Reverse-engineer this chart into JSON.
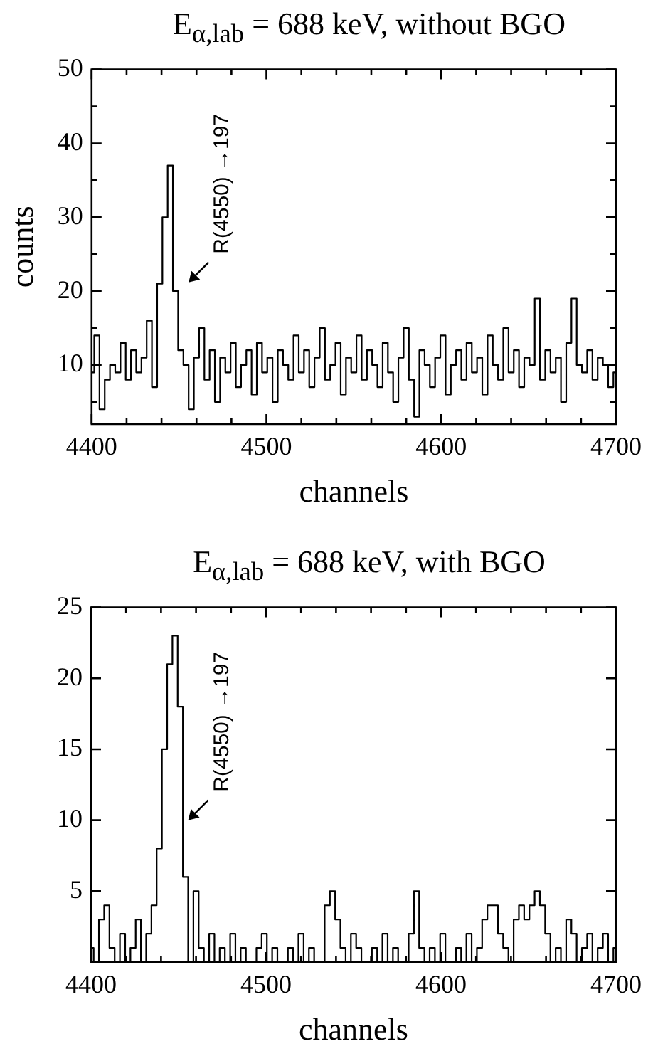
{
  "chart_data": [
    {
      "type": "step",
      "title": "E$_{α,lab}$ = 688 keV, without BGO",
      "xlabel": "channels",
      "ylabel": "counts",
      "x": [
        4400,
        4403,
        4406,
        4409,
        4412,
        4415,
        4418,
        4421,
        4424,
        4427,
        4430,
        4433,
        4436,
        4439,
        4442,
        4445,
        4448,
        4451,
        4454,
        4457,
        4460,
        4463,
        4466,
        4469,
        4472,
        4475,
        4478,
        4481,
        4484,
        4487,
        4490,
        4493,
        4496,
        4499,
        4502,
        4505,
        4508,
        4511,
        4514,
        4517,
        4520,
        4523,
        4526,
        4529,
        4532,
        4535,
        4538,
        4541,
        4544,
        4547,
        4550,
        4553,
        4556,
        4559,
        4562,
        4565,
        4568,
        4571,
        4574,
        4577,
        4580,
        4583,
        4586,
        4589,
        4592,
        4595,
        4598,
        4601,
        4604,
        4607,
        4610,
        4613,
        4616,
        4619,
        4622,
        4625,
        4628,
        4631,
        4634,
        4637,
        4640,
        4643,
        4646,
        4649,
        4652,
        4655,
        4658,
        4661,
        4664,
        4667,
        4670,
        4673,
        4676,
        4679,
        4682,
        4685,
        4688,
        4691,
        4694,
        4697,
        4700
      ],
      "series": [
        {
          "color": "#000000",
          "values": [
            9,
            14,
            4,
            8,
            10,
            9,
            13,
            8,
            12,
            9,
            11,
            16,
            7,
            21,
            30,
            37,
            20,
            12,
            10,
            4,
            11,
            15,
            8,
            12,
            5,
            11,
            9,
            13,
            7,
            10,
            12,
            6,
            13,
            9,
            11,
            5,
            12,
            10,
            8,
            14,
            9,
            12,
            7,
            11,
            15,
            8,
            10,
            13,
            6,
            11,
            9,
            14,
            8,
            12,
            10,
            7,
            13,
            9,
            5,
            11,
            15,
            8,
            3,
            12,
            10,
            7,
            11,
            14,
            6,
            10,
            12,
            8,
            13,
            9,
            11,
            6,
            14,
            10,
            8,
            15,
            9,
            12,
            7,
            11,
            10,
            19,
            8,
            12,
            9,
            11,
            5,
            13,
            19,
            10,
            9,
            12,
            8,
            11,
            10,
            7,
            9
          ]
        }
      ],
      "xlim": [
        4400,
        4700
      ],
      "xticks": [
        4400,
        {
          "value": 4420,
          "label": null
        },
        {
          "value": 4440,
          "label": null
        },
        {
          "value": 4460,
          "label": null
        },
        {
          "value": 4480,
          "label": null
        },
        4500,
        {
          "value": 4520,
          "label": null
        },
        {
          "value": 4540,
          "label": null
        },
        {
          "value": 4560,
          "label": null
        },
        {
          "value": 4580,
          "label": null
        },
        4600,
        {
          "value": 4620,
          "label": null
        },
        {
          "value": 4640,
          "label": null
        },
        {
          "value": 4660,
          "label": null
        },
        {
          "value": 4680,
          "label": null
        },
        4700
      ],
      "ylim": [
        2,
        50
      ],
      "yticks": [
        {
          "value": 5,
          "label": null
        },
        10,
        {
          "value": 15,
          "label": null
        },
        20,
        {
          "value": 25,
          "label": null
        },
        30,
        {
          "value": 35,
          "label": null
        },
        40,
        {
          "value": 45,
          "label": null
        },
        50
      ],
      "annotations": [
        "R(4550) →197"
      ]
    },
    {
      "type": "step",
      "title": "E$_{α,lab}$ = 688 keV, with BGO",
      "xlabel": "channels",
      "x": [
        4400,
        4403,
        4406,
        4409,
        4412,
        4415,
        4418,
        4421,
        4424,
        4427,
        4430,
        4433,
        4436,
        4439,
        4442,
        4445,
        4448,
        4451,
        4454,
        4457,
        4460,
        4463,
        4466,
        4469,
        4472,
        4475,
        4478,
        4481,
        4484,
        4487,
        4490,
        4493,
        4496,
        4499,
        4502,
        4505,
        4508,
        4511,
        4514,
        4517,
        4520,
        4523,
        4526,
        4529,
        4532,
        4535,
        4538,
        4541,
        4544,
        4547,
        4550,
        4553,
        4556,
        4559,
        4562,
        4565,
        4568,
        4571,
        4574,
        4577,
        4580,
        4583,
        4586,
        4589,
        4592,
        4595,
        4598,
        4601,
        4604,
        4607,
        4610,
        4613,
        4616,
        4619,
        4622,
        4625,
        4628,
        4631,
        4634,
        4637,
        4640,
        4643,
        4646,
        4649,
        4652,
        4655,
        4658,
        4661,
        4664,
        4667,
        4670,
        4673,
        4676,
        4679,
        4682,
        4685,
        4688,
        4691,
        4694,
        4697,
        4700
      ],
      "series": [
        {
          "color": "#000000",
          "values": [
            1,
            0,
            3,
            4,
            1,
            0,
            2,
            0,
            1,
            3,
            0,
            2,
            4,
            8,
            15,
            21,
            23,
            18,
            6,
            0,
            5,
            1,
            0,
            2,
            0,
            1,
            0,
            2,
            0,
            1,
            0,
            0,
            1,
            2,
            0,
            1,
            0,
            0,
            1,
            0,
            2,
            0,
            1,
            0,
            0,
            4,
            5,
            3,
            1,
            0,
            2,
            1,
            0,
            0,
            1,
            0,
            2,
            0,
            1,
            0,
            0,
            2,
            5,
            1,
            0,
            1,
            0,
            2,
            0,
            0,
            1,
            0,
            2,
            0,
            1,
            3,
            4,
            4,
            2,
            1,
            0,
            3,
            4,
            3,
            4,
            5,
            4,
            2,
            0,
            1,
            0,
            3,
            2,
            0,
            1,
            2,
            0,
            1,
            2,
            0,
            1
          ]
        }
      ],
      "xlim": [
        4400,
        4700
      ],
      "xticks": [
        4400,
        {
          "value": 4420,
          "label": null
        },
        {
          "value": 4440,
          "label": null
        },
        {
          "value": 4460,
          "label": null
        },
        {
          "value": 4480,
          "label": null
        },
        4500,
        {
          "value": 4520,
          "label": null
        },
        {
          "value": 4540,
          "label": null
        },
        {
          "value": 4560,
          "label": null
        },
        {
          "value": 4580,
          "label": null
        },
        4600,
        {
          "value": 4620,
          "label": null
        },
        {
          "value": 4640,
          "label": null
        },
        {
          "value": 4660,
          "label": null
        },
        {
          "value": 4680,
          "label": null
        },
        4700
      ],
      "ylim": [
        0,
        25
      ],
      "yticks": [
        5,
        10,
        15,
        20,
        25
      ],
      "annotations": [
        "R(4550) →197"
      ]
    }
  ]
}
